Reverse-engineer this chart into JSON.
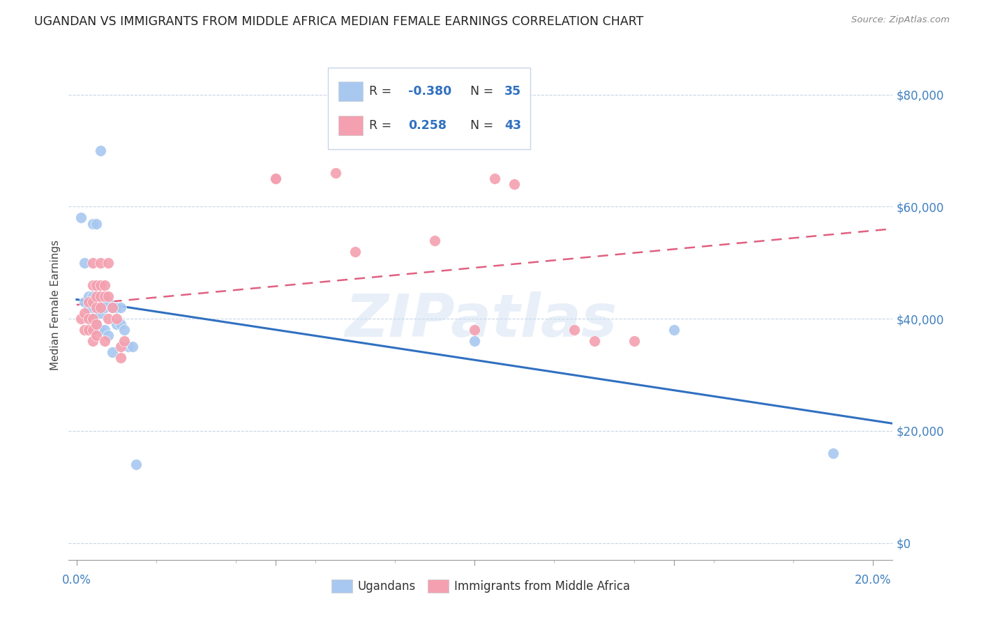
{
  "title": "UGANDAN VS IMMIGRANTS FROM MIDDLE AFRICA MEDIAN FEMALE EARNINGS CORRELATION CHART",
  "source": "Source: ZipAtlas.com",
  "ylabel": "Median Female Earnings",
  "ytick_labels": [
    "$0",
    "$20,000",
    "$40,000",
    "$60,000",
    "$80,000"
  ],
  "ytick_vals": [
    0,
    20000,
    40000,
    60000,
    80000
  ],
  "xlim": [
    -0.002,
    0.205
  ],
  "ylim": [
    -3000,
    88000
  ],
  "R_ugandan": -0.38,
  "N_ugandan": 35,
  "R_middle_africa": 0.258,
  "N_middle_africa": 43,
  "ugandan_color": "#a8c8f0",
  "middle_africa_color": "#f4a0b0",
  "trend_ugandan_color": "#3070c0",
  "trend_middle_africa_color": "#e06080",
  "watermark": "ZIPatlas",
  "ugandan_points": [
    [
      0.001,
      58000
    ],
    [
      0.002,
      43000
    ],
    [
      0.002,
      50000
    ],
    [
      0.003,
      44000
    ],
    [
      0.003,
      42000
    ],
    [
      0.004,
      57000
    ],
    [
      0.004,
      44000
    ],
    [
      0.004,
      42000
    ],
    [
      0.004,
      40000
    ],
    [
      0.005,
      57000
    ],
    [
      0.005,
      44000
    ],
    [
      0.005,
      42000
    ],
    [
      0.005,
      39000
    ],
    [
      0.006,
      70000
    ],
    [
      0.006,
      44000
    ],
    [
      0.006,
      41000
    ],
    [
      0.006,
      38000
    ],
    [
      0.007,
      44000
    ],
    [
      0.007,
      42000
    ],
    [
      0.007,
      38000
    ],
    [
      0.008,
      43000
    ],
    [
      0.008,
      37000
    ],
    [
      0.009,
      42000
    ],
    [
      0.009,
      34000
    ],
    [
      0.01,
      42000
    ],
    [
      0.01,
      39000
    ],
    [
      0.011,
      42000
    ],
    [
      0.011,
      39000
    ],
    [
      0.012,
      38000
    ],
    [
      0.013,
      35000
    ],
    [
      0.014,
      35000
    ],
    [
      0.015,
      14000
    ],
    [
      0.1,
      36000
    ],
    [
      0.15,
      38000
    ],
    [
      0.19,
      16000
    ]
  ],
  "middle_africa_points": [
    [
      0.001,
      40000
    ],
    [
      0.002,
      41000
    ],
    [
      0.002,
      38000
    ],
    [
      0.003,
      43000
    ],
    [
      0.003,
      40000
    ],
    [
      0.003,
      38000
    ],
    [
      0.004,
      50000
    ],
    [
      0.004,
      46000
    ],
    [
      0.004,
      43000
    ],
    [
      0.004,
      40000
    ],
    [
      0.004,
      38000
    ],
    [
      0.004,
      36000
    ],
    [
      0.005,
      46000
    ],
    [
      0.005,
      44000
    ],
    [
      0.005,
      42000
    ],
    [
      0.005,
      39000
    ],
    [
      0.005,
      37000
    ],
    [
      0.006,
      50000
    ],
    [
      0.006,
      46000
    ],
    [
      0.006,
      44000
    ],
    [
      0.006,
      42000
    ],
    [
      0.007,
      46000
    ],
    [
      0.007,
      44000
    ],
    [
      0.007,
      36000
    ],
    [
      0.008,
      50000
    ],
    [
      0.008,
      44000
    ],
    [
      0.008,
      40000
    ],
    [
      0.009,
      42000
    ],
    [
      0.01,
      40000
    ],
    [
      0.011,
      35000
    ],
    [
      0.011,
      33000
    ],
    [
      0.012,
      36000
    ],
    [
      0.05,
      65000
    ],
    [
      0.065,
      66000
    ],
    [
      0.07,
      52000
    ],
    [
      0.09,
      54000
    ],
    [
      0.1,
      38000
    ],
    [
      0.105,
      65000
    ],
    [
      0.11,
      64000
    ],
    [
      0.125,
      38000
    ],
    [
      0.13,
      36000
    ],
    [
      0.14,
      36000
    ],
    [
      0.05,
      65000
    ]
  ],
  "background_color": "#ffffff",
  "grid_color": "#c8d4e8"
}
